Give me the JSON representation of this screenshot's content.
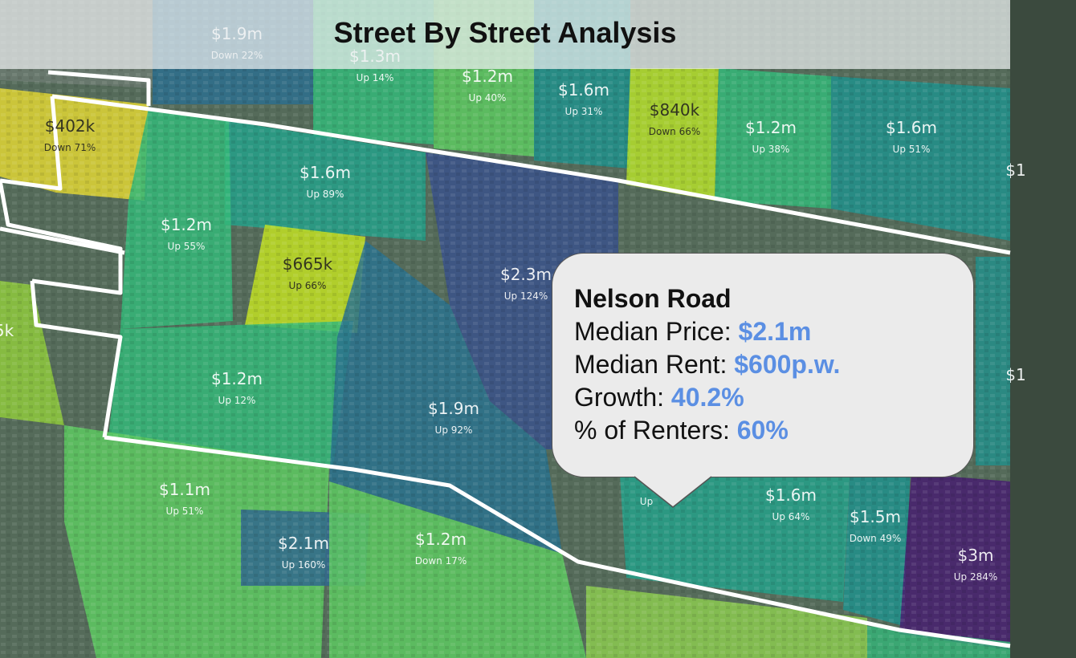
{
  "title": "Street By Street Analysis",
  "colors": {
    "callout_value": "#5b8fe3",
    "callout_bg": "#ebebeb",
    "boundary": "#ffffff"
  },
  "zones": [
    {
      "id": "z1",
      "price": "$1.9m",
      "change": "Down 22%",
      "color": "#2e6f8e"
    },
    {
      "id": "z2",
      "price": "$1.3m",
      "change": "Up 14%",
      "color": "#35b779"
    },
    {
      "id": "z3",
      "price": "$1.2m",
      "change": "Up 40%",
      "color": "#5ec962"
    },
    {
      "id": "z4",
      "price": "$1.6m",
      "change": "Up 31%",
      "color": "#21918c"
    },
    {
      "id": "z5",
      "price": "$840k",
      "change": "Down 66%",
      "color": "#b5de2b"
    },
    {
      "id": "z6",
      "price": "$1.2m",
      "change": "Up 38%",
      "color": "#35b779"
    },
    {
      "id": "z7",
      "price": "$1.6m",
      "change": "Up 51%",
      "color": "#21918c"
    },
    {
      "id": "z8",
      "price": "$402k",
      "change": "Down 71%",
      "color": "#e0d535"
    },
    {
      "id": "z9",
      "price": "$1.6m",
      "change": "Up 89%",
      "color": "#26a08a"
    },
    {
      "id": "z10",
      "price": "$1.2m",
      "change": "Up 55%",
      "color": "#35b779"
    },
    {
      "id": "z11",
      "price": "$665k",
      "change": "Up 66%",
      "color": "#c2df23"
    },
    {
      "id": "z12",
      "price": "$2.3m",
      "change": "Up 124%",
      "color": "#3b528b"
    },
    {
      "id": "z13",
      "price": "$1.2m",
      "change": "Up 12%",
      "color": "#35b779"
    },
    {
      "id": "z14",
      "price": "$1.9m",
      "change": "Up 92%",
      "color": "#2c728e"
    },
    {
      "id": "z15",
      "price": "$1.1m",
      "change": "Up 51%",
      "color": "#5ec962"
    },
    {
      "id": "z16",
      "price": "$2.1m",
      "change": "Up 160%",
      "color": "#31688e"
    },
    {
      "id": "z17",
      "price": "$1.2m",
      "change": "Down 17%",
      "color": "#5ec962"
    },
    {
      "id": "z18",
      "price": "$1.6m",
      "change": "Up 64%",
      "color": "#26a08a"
    },
    {
      "id": "z19",
      "price": "$1.5m",
      "change": "Down 49%",
      "color": "#21918c"
    },
    {
      "id": "z20",
      "price": "$3m",
      "change": "Up 284%",
      "color": "#481f70"
    }
  ],
  "partial_labels": {
    "left_edge": "5k",
    "right_edge_1": "$1",
    "right_edge_2": "$1",
    "tooltip_hidden": "Up"
  },
  "callout": {
    "road": "Nelson Road",
    "median_price_label": "Median Price: ",
    "median_price_value": "$2.1m",
    "median_rent_label": "Median Rent: ",
    "median_rent_value": "$600p.w.",
    "growth_label": "Growth: ",
    "growth_value": "40.2%",
    "renters_label": "% of Renters: ",
    "renters_value": "60%"
  }
}
